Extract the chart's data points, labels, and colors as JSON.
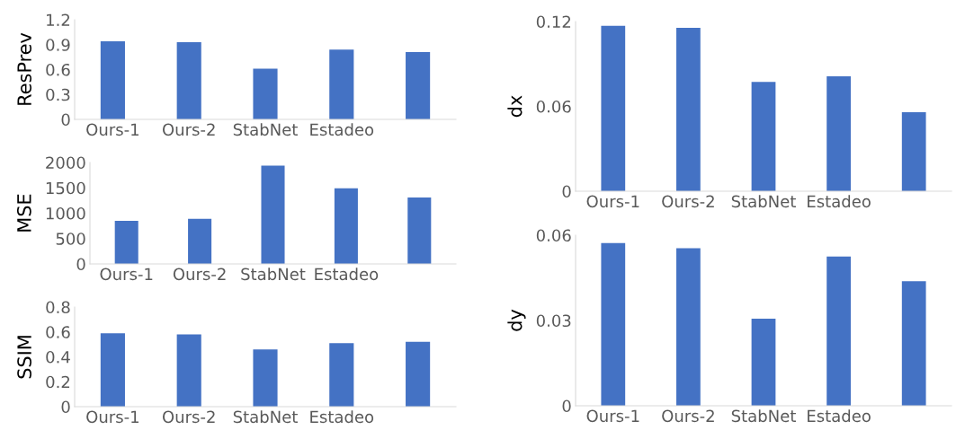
{
  "chart_data": [
    {
      "type": "bar",
      "ylabel": "ResPrev",
      "categories": [
        "Ours-1",
        "Ours-2",
        "StabNet",
        "Estadeo",
        null
      ],
      "values": [
        0.94,
        0.93,
        0.61,
        0.84,
        0.81
      ],
      "color": "#4472c4",
      "ylim": [
        0,
        1.2
      ],
      "yticks": [
        0,
        0.3,
        0.6,
        0.9,
        1.2
      ],
      "grid": false
    },
    {
      "type": "bar",
      "ylabel": "MSE",
      "categories": [
        "Ours-1",
        "Ours-2",
        "StabNet",
        "Estadeo",
        null
      ],
      "values": [
        850,
        890,
        1940,
        1490,
        1310
      ],
      "color": "#4472c4",
      "ylim": [
        0,
        2000
      ],
      "yticks": [
        0,
        500,
        1000,
        1500,
        2000
      ],
      "grid": false
    },
    {
      "type": "bar",
      "ylabel": "SSIM",
      "categories": [
        "Ours-1",
        "Ours-2",
        "StabNet",
        "Estadeo",
        null
      ],
      "values": [
        0.59,
        0.58,
        0.46,
        0.51,
        0.52
      ],
      "color": "#4472c4",
      "ylim": [
        0,
        0.8
      ],
      "yticks": [
        0,
        0.2,
        0.4,
        0.6,
        0.8
      ],
      "grid": false
    },
    {
      "type": "bar",
      "ylabel": "dx",
      "categories": [
        "Ours-1",
        "Ours-2",
        "StabNet",
        "Estadeo",
        null
      ],
      "values": [
        0.117,
        0.1156,
        0.0773,
        0.0813,
        0.0558
      ],
      "color": "#4472c4",
      "ylim": [
        0,
        0.12
      ],
      "yticks": [
        0,
        0.06,
        0.12
      ],
      "grid": false
    },
    {
      "type": "bar",
      "ylabel": "dy",
      "categories": [
        "Ours-1",
        "Ours-2",
        "StabNet",
        "Estadeo",
        null
      ],
      "values": [
        0.0572,
        0.0554,
        0.0306,
        0.0525,
        0.0438
      ],
      "color": "#4472c4",
      "ylim": [
        0,
        0.06
      ],
      "yticks": [
        0,
        0.03,
        0.06
      ],
      "grid": false
    }
  ]
}
